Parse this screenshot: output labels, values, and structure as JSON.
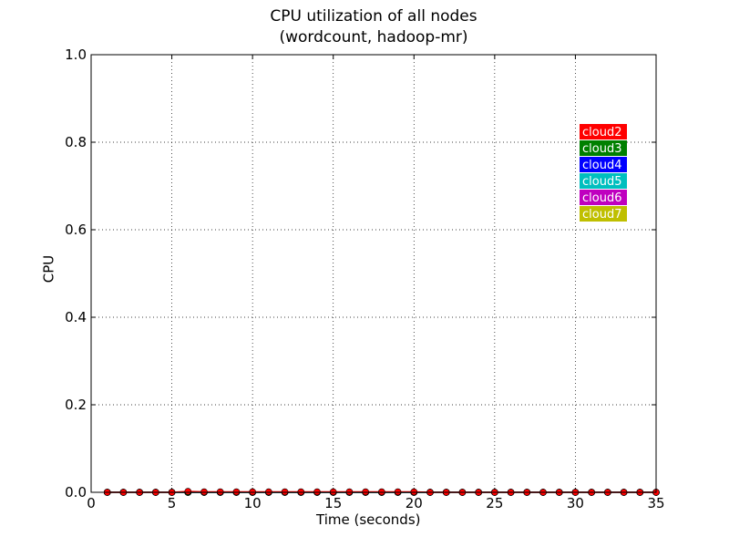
{
  "chart_data": {
    "type": "line",
    "title": "CPU utilization of all nodes",
    "subtitle": "(wordcount, hadoop-mr)",
    "xlabel": "Time (seconds)",
    "ylabel": "CPU",
    "xlim": [
      0,
      35
    ],
    "ylim": [
      0.0,
      1.0
    ],
    "xticks": [
      0,
      5,
      10,
      15,
      20,
      25,
      30,
      35
    ],
    "xtick_labels": [
      "0",
      "5",
      "10",
      "15",
      "20",
      "25",
      "30",
      "35"
    ],
    "yticks": [
      0.0,
      0.2,
      0.4,
      0.6,
      0.8,
      1.0
    ],
    "ytick_labels": [
      "0.0",
      "0.2",
      "0.4",
      "0.6",
      "0.8",
      "1.0"
    ],
    "grid": true,
    "legend_placement": "upper-right",
    "x": [
      1,
      2,
      3,
      4,
      5,
      6,
      7,
      8,
      9,
      10,
      11,
      12,
      13,
      14,
      15,
      16,
      17,
      18,
      19,
      20,
      21,
      22,
      23,
      24,
      25,
      26,
      27,
      28,
      29,
      30,
      31,
      32,
      33,
      34,
      35
    ],
    "series": [
      {
        "name": "cloud2",
        "color": "#ff0000",
        "values": [
          0,
          0,
          0,
          0,
          0,
          0.002,
          0.001,
          0.001,
          0.001,
          0.001,
          0.001,
          0.001,
          0.001,
          0.001,
          0.001,
          0.001,
          0.001,
          0.001,
          0.001,
          0.001,
          0,
          0,
          0,
          0,
          0,
          0,
          0,
          0,
          0,
          0,
          0,
          0,
          0,
          0,
          0
        ]
      },
      {
        "name": "cloud3",
        "color": "#008000",
        "values": [
          0,
          0,
          0,
          0,
          0,
          0,
          0,
          0,
          0,
          0,
          0,
          0,
          0,
          0,
          0,
          0,
          0,
          0,
          0,
          0,
          0,
          0,
          0,
          0,
          0,
          0,
          0,
          0,
          0,
          0,
          0,
          0,
          0,
          0,
          0
        ]
      },
      {
        "name": "cloud4",
        "color": "#0000ff",
        "values": [
          0,
          0,
          0,
          0,
          0,
          0,
          0,
          0,
          0,
          0,
          0,
          0,
          0,
          0,
          0,
          0,
          0,
          0,
          0,
          0,
          0,
          0,
          0,
          0,
          0,
          0,
          0,
          0,
          0,
          0,
          0,
          0,
          0,
          0,
          0
        ]
      },
      {
        "name": "cloud5",
        "color": "#00bfbf",
        "values": [
          0,
          0,
          0,
          0,
          0,
          0,
          0,
          0,
          0,
          0,
          0,
          0,
          0,
          0,
          0,
          0,
          0,
          0,
          0,
          0,
          0,
          0,
          0,
          0,
          0,
          0,
          0,
          0,
          0,
          0,
          0,
          0,
          0,
          0,
          0
        ]
      },
      {
        "name": "cloud6",
        "color": "#bf00bf",
        "values": [
          0,
          0,
          0,
          0,
          0,
          0,
          0,
          0,
          0,
          0,
          0,
          0,
          0,
          0,
          0,
          0,
          0,
          0,
          0,
          0,
          0,
          0,
          0,
          0,
          0,
          0,
          0,
          0,
          0,
          0,
          0,
          0,
          0,
          0,
          0
        ]
      },
      {
        "name": "cloud7",
        "color": "#bfbf00",
        "values": [
          0,
          0,
          0,
          0,
          0,
          0,
          0,
          0,
          0,
          0,
          0,
          0,
          0,
          0,
          0,
          0,
          0,
          0,
          0,
          0,
          0,
          0,
          0,
          0,
          0,
          0,
          0,
          0,
          0,
          0,
          0,
          0,
          0,
          0,
          0
        ]
      }
    ]
  }
}
